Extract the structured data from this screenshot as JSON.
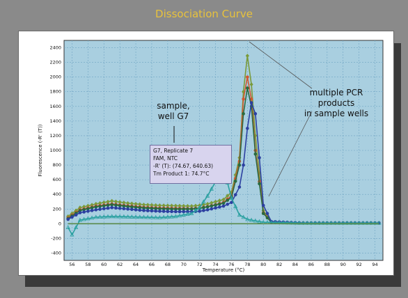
{
  "page": {
    "title": "Dissociation Curve"
  },
  "annotations": {
    "sample_line1": "sample,",
    "sample_line2": "well G7",
    "multi_line1": "multiple PCR products",
    "multi_line2": "in sample wells"
  },
  "tooltip": {
    "line1": "G7, Replicate 7",
    "line2": "FAM, NTC",
    "line3": "-R' (T): (74.67, 640.63)",
    "line4": "Tm Product 1: 74.7°C"
  },
  "colors": {
    "title": "#e8c23c",
    "plot_bg": "#a9cfe0",
    "grid": "#6fa4c2"
  },
  "chart_data": {
    "type": "line",
    "xlabel": "Temperature (°C)",
    "ylabel": "Fluorescence (-R' (T))",
    "xlim": [
      55,
      95
    ],
    "ylim": [
      -500,
      2500
    ],
    "x_ticks": [
      56,
      58,
      60,
      62,
      64,
      66,
      68,
      70,
      72,
      74,
      76,
      78,
      80,
      82,
      84,
      86,
      88,
      90,
      92,
      94
    ],
    "y_ticks": [
      -400,
      -200,
      0,
      200,
      400,
      600,
      800,
      1000,
      1200,
      1400,
      1600,
      1800,
      2000,
      2200,
      2400
    ],
    "grid": true,
    "series": [
      {
        "color": "#7a9a3a",
        "marker": "diamond",
        "x": [
          55.5,
          57,
          59,
          61,
          63,
          65,
          67,
          69,
          71,
          72,
          73,
          74,
          75,
          76,
          77,
          77.5,
          78,
          78.5,
          79,
          80,
          81,
          85,
          90,
          94.5
        ],
        "y": [
          100,
          220,
          270,
          310,
          280,
          260,
          250,
          245,
          240,
          250,
          270,
          300,
          330,
          430,
          900,
          1800,
          2290,
          1900,
          1200,
          180,
          20,
          10,
          10,
          10
        ]
      },
      {
        "color": "#d05830",
        "marker": "circle",
        "x": [
          55.5,
          57,
          59,
          61,
          63,
          65,
          67,
          69,
          71,
          72,
          73,
          74,
          75,
          76,
          77,
          77.5,
          78,
          78.5,
          79,
          80,
          81,
          85,
          90,
          94.5
        ],
        "y": [
          80,
          190,
          240,
          270,
          245,
          225,
          215,
          210,
          205,
          215,
          235,
          260,
          290,
          380,
          850,
          1700,
          2000,
          1700,
          1000,
          150,
          20,
          10,
          10,
          10
        ]
      },
      {
        "color": "#2a6a40",
        "marker": "circle",
        "x": [
          55.5,
          57,
          59,
          61,
          63,
          65,
          67,
          69,
          71,
          72,
          73,
          74,
          75,
          76,
          77,
          77.5,
          78,
          78.5,
          79,
          80,
          81,
          85,
          90,
          94.5
        ],
        "y": [
          70,
          180,
          230,
          260,
          235,
          215,
          205,
          200,
          200,
          210,
          230,
          255,
          280,
          360,
          800,
          1500,
          1850,
          1600,
          950,
          140,
          20,
          10,
          10,
          10
        ]
      },
      {
        "color": "#2c3fa0",
        "marker": "circle",
        "x": [
          55.5,
          57,
          59,
          61,
          63,
          65,
          67,
          69,
          71,
          72,
          73,
          74,
          75,
          76,
          77,
          77.5,
          78,
          78.5,
          79,
          79.5,
          80,
          81,
          85,
          90,
          94.5
        ],
        "y": [
          60,
          150,
          190,
          220,
          200,
          180,
          170,
          165,
          165,
          170,
          190,
          215,
          240,
          290,
          500,
          800,
          1300,
          1650,
          1500,
          900,
          250,
          30,
          10,
          10,
          10
        ]
      },
      {
        "color": "#2aa0a0",
        "marker": "triangle",
        "x": [
          55.5,
          56,
          57,
          59,
          61,
          63,
          65,
          67,
          69,
          71,
          72,
          73,
          74,
          74.7,
          75.5,
          76,
          77,
          78,
          80,
          85,
          90,
          94.5
        ],
        "y": [
          -50,
          -150,
          50,
          90,
          100,
          95,
          90,
          85,
          100,
          140,
          220,
          380,
          570,
          640,
          560,
          350,
          120,
          60,
          20,
          10,
          10,
          10
        ]
      },
      {
        "color": "#5a8a4a",
        "marker": "none",
        "x": [
          55.5,
          60,
          65,
          70,
          75,
          80,
          85,
          90,
          94.5
        ],
        "y": [
          0,
          0,
          0,
          0,
          0,
          0,
          0,
          0,
          0
        ]
      }
    ]
  }
}
